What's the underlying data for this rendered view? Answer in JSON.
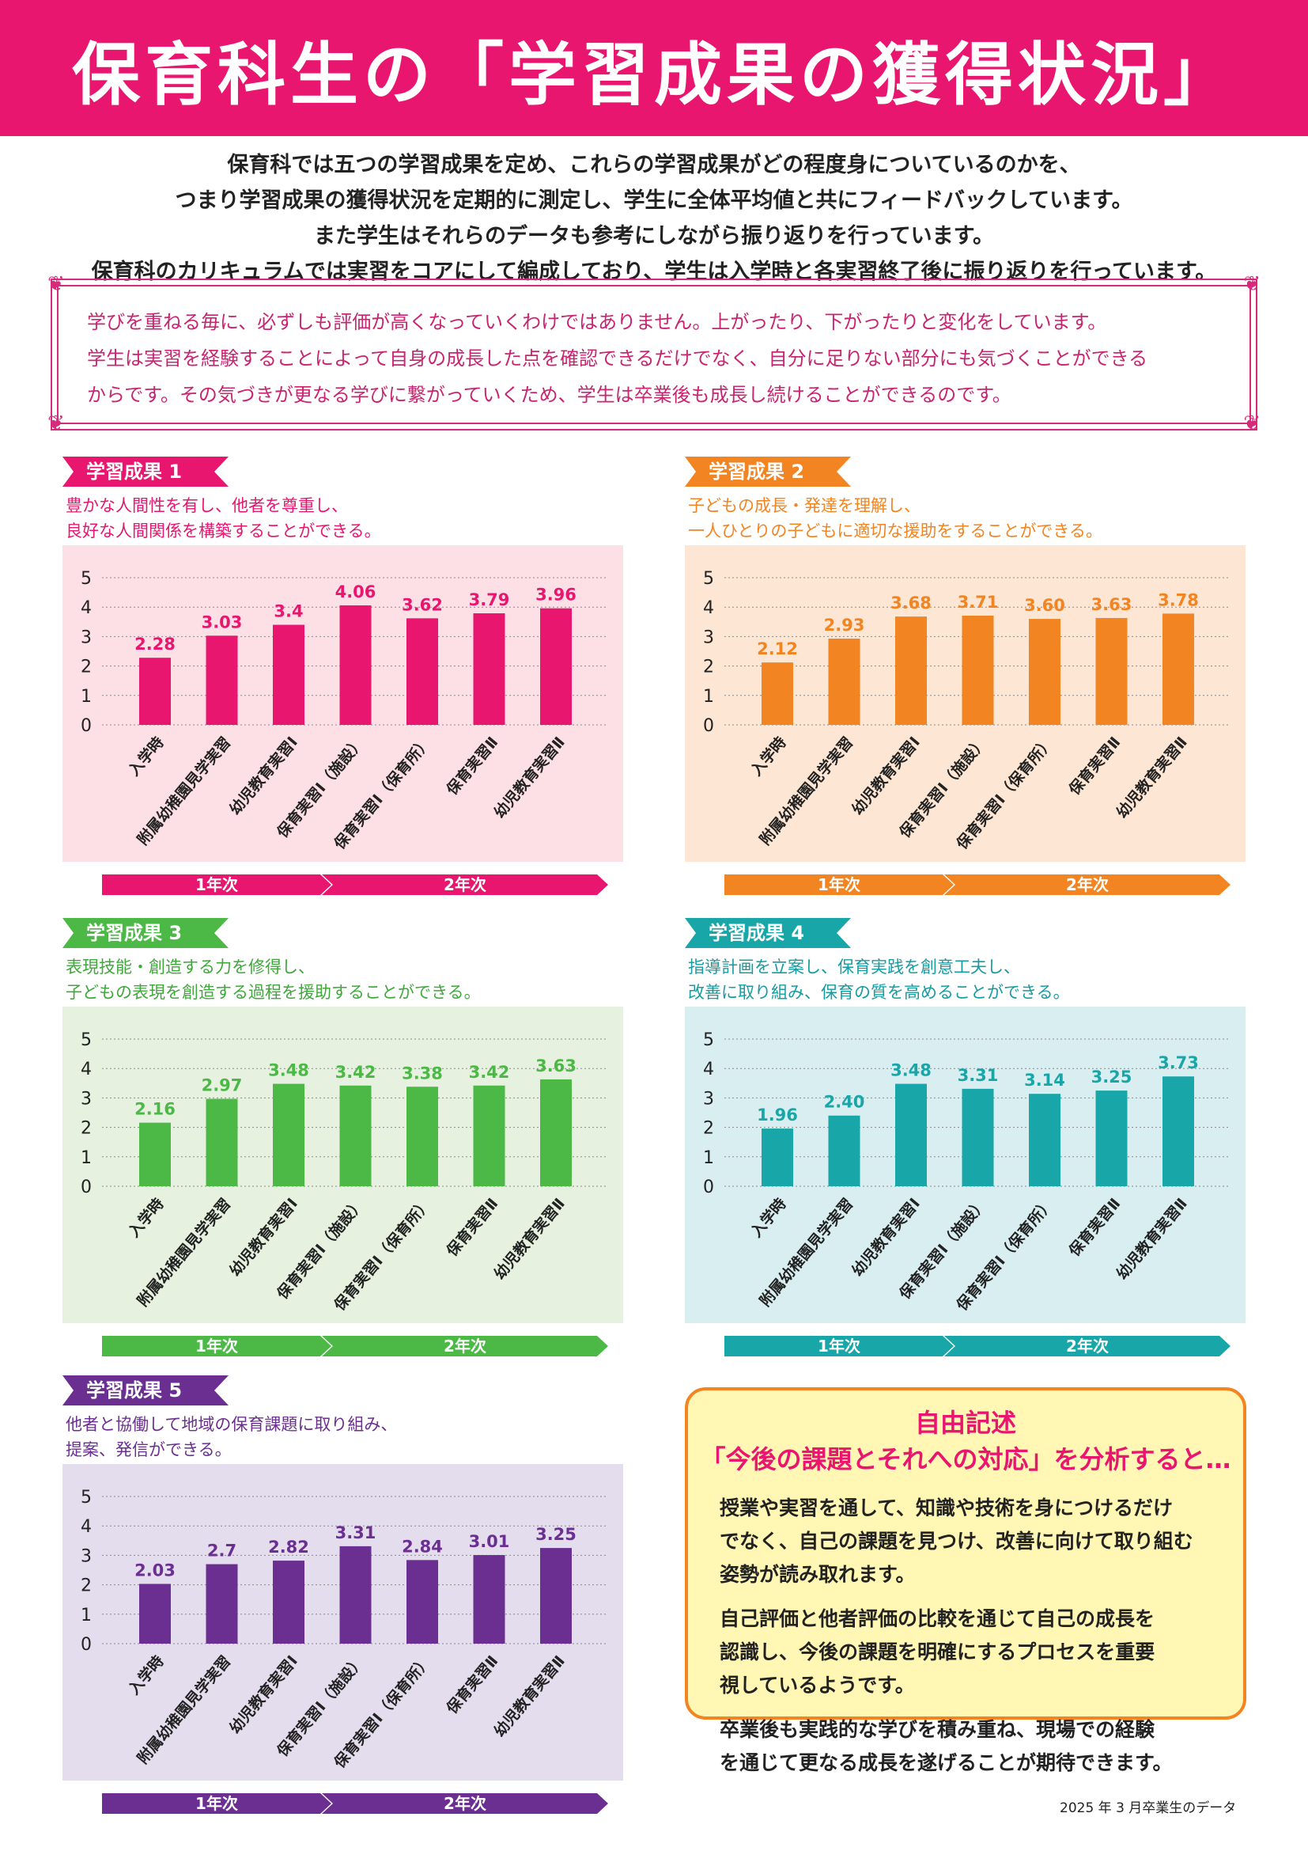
{
  "header": {
    "title": "保育科生の「学習成果の獲得状況」"
  },
  "intro": [
    "保育科では五つの学習成果を定め、これらの学習成果がどの程度身についているのかを、",
    "つまり学習成果の獲得状況を定期的に測定し、学生に全体平均値と共にフィードバックしています。",
    "また学生はそれらのデータも参考にしながら振り返りを行っています。",
    "保育科のカリキュラムでは実習をコアにして編成しており、学生は入学時と各実習終了後に振り返りを行っています。"
  ],
  "note": [
    "学びを重ねる毎に、必ずしも評価が高くなっていくわけではありません。上がったり、下がったりと変化をしています。",
    "学生は実習を経験することによって自身の成長した点を確認できるだけでなく、自分に足りない部分にも気づくことができる",
    "からです。その気づきが更なる学びに繋がっていくため、学生は卒業後も成長し続けることができるのです。"
  ],
  "phases": [
    "1年次",
    "2年次"
  ],
  "chart_data": [
    {
      "type": "bar",
      "tag": "学習成果 1",
      "description": [
        "豊かな人間性を有し、他者を尊重し、",
        "良好な人間関係を構築することができる。"
      ],
      "categories": [
        "入学時",
        "附属幼稚園見学実習",
        "幼児教育実習Ⅰ",
        "保育実習Ⅰ（施設）",
        "保育実習Ⅰ（保育所）",
        "保育実習Ⅱ",
        "幼児教育実習Ⅱ"
      ],
      "values": [
        2.28,
        3.03,
        3.4,
        4.06,
        3.62,
        3.79,
        3.96
      ],
      "labels": [
        "2.28",
        "3.03",
        "3.4",
        "4.06",
        "3.62",
        "3.79",
        "3.96"
      ],
      "ylim": [
        0,
        5
      ],
      "yticks": [
        "0",
        "1",
        "2",
        "3",
        "4",
        "5"
      ],
      "grid": true,
      "colors": {
        "bar": "#e8166f",
        "label": "#e8166f",
        "bg": "#fde0e6",
        "tag": "#e8166f",
        "desc": "#e8166f"
      }
    },
    {
      "type": "bar",
      "tag": "学習成果 2",
      "description": [
        "子どもの成長・発達を理解し、",
        "一人ひとりの子どもに適切な援助をすることができる。"
      ],
      "categories": [
        "入学時",
        "附属幼稚園見学実習",
        "幼児教育実習Ⅰ",
        "保育実習Ⅰ（施設）",
        "保育実習Ⅰ（保育所）",
        "保育実習Ⅱ",
        "幼児教育実習Ⅱ"
      ],
      "values": [
        2.12,
        2.93,
        3.68,
        3.71,
        3.6,
        3.63,
        3.78
      ],
      "labels": [
        "2.12",
        "2.93",
        "3.68",
        "3.71",
        "3.60",
        "3.63",
        "3.78"
      ],
      "ylim": [
        0,
        5
      ],
      "yticks": [
        "0",
        "1",
        "2",
        "3",
        "4",
        "5"
      ],
      "grid": true,
      "colors": {
        "bar": "#f28421",
        "label": "#f28421",
        "bg": "#fde6d3",
        "tag": "#f28421",
        "desc": "#f28421"
      }
    },
    {
      "type": "bar",
      "tag": "学習成果 3",
      "description": [
        "表現技能・創造する力を修得し、",
        "子どもの表現を創造する過程を援助することができる。"
      ],
      "categories": [
        "入学時",
        "附属幼稚園見学実習",
        "幼児教育実習Ⅰ",
        "保育実習Ⅰ（施設）",
        "保育実習Ⅰ（保育所）",
        "保育実習Ⅱ",
        "幼児教育実習Ⅱ"
      ],
      "values": [
        2.16,
        2.97,
        3.48,
        3.42,
        3.38,
        3.42,
        3.63
      ],
      "labels": [
        "2.16",
        "2.97",
        "3.48",
        "3.42",
        "3.38",
        "3.42",
        "3.63"
      ],
      "ylim": [
        0,
        5
      ],
      "yticks": [
        "0",
        "1",
        "2",
        "3",
        "4",
        "5"
      ],
      "grid": true,
      "colors": {
        "bar": "#4cb846",
        "label": "#4cb846",
        "bg": "#e6f2df",
        "tag": "#4cb846",
        "desc": "#3ea83a"
      }
    },
    {
      "type": "bar",
      "tag": "学習成果 4",
      "description": [
        "指導計画を立案し、保育実践を創意工夫し、",
        "改善に取り組み、保育の質を高めることができる。"
      ],
      "categories": [
        "入学時",
        "附属幼稚園見学実習",
        "幼児教育実習Ⅰ",
        "保育実習Ⅰ（施設）",
        "保育実習Ⅰ（保育所）",
        "保育実習Ⅱ",
        "幼児教育実習Ⅱ"
      ],
      "values": [
        1.96,
        2.4,
        3.48,
        3.31,
        3.14,
        3.25,
        3.73
      ],
      "labels": [
        "1.96",
        "2.40",
        "3.48",
        "3.31",
        "3.14",
        "3.25",
        "3.73"
      ],
      "ylim": [
        0,
        5
      ],
      "yticks": [
        "0",
        "1",
        "2",
        "3",
        "4",
        "5"
      ],
      "grid": true,
      "colors": {
        "bar": "#19a6a8",
        "label": "#19a6a8",
        "bg": "#d9eef0",
        "tag": "#19a6a8",
        "desc": "#149ca0"
      }
    },
    {
      "type": "bar",
      "tag": "学習成果 5",
      "description": [
        "他者と協働して地域の保育課題に取り組み、",
        "提案、発信ができる。"
      ],
      "categories": [
        "入学時",
        "附属幼稚園見学実習",
        "幼児教育実習Ⅰ",
        "保育実習Ⅰ（施設）",
        "保育実習Ⅰ（保育所）",
        "保育実習Ⅱ",
        "幼児教育実習Ⅱ"
      ],
      "values": [
        2.03,
        2.7,
        2.82,
        3.31,
        2.84,
        3.01,
        3.25
      ],
      "labels": [
        "2.03",
        "2.7",
        "2.82",
        "3.31",
        "2.84",
        "3.01",
        "3.25"
      ],
      "ylim": [
        0,
        5
      ],
      "yticks": [
        "0",
        "1",
        "2",
        "3",
        "4",
        "5"
      ],
      "grid": true,
      "colors": {
        "bar": "#6b2f91",
        "label": "#6b2f91",
        "bg": "#e3dded",
        "tag": "#6b2f91",
        "desc": "#6b2f91"
      }
    }
  ],
  "free": {
    "title1": "自由記述",
    "title2": "「今後の課題とそれへの対応」を分析すると…",
    "paragraphs": [
      [
        "授業や実習を通して、知識や技術を身につけるだけ",
        "でなく、自己の課題を見つけ、改善に向けて取り組む",
        "姿勢が読み取れます。"
      ],
      [
        "自己評価と他者評価の比較を通じて自己の成長を",
        "認識し、今後の課題を明確にするプロセスを重要",
        "視しているようです。"
      ],
      [
        "卒業後も実践的な学びを積み重ね、現場での経験",
        "を通じて更なる成長を遂げることが期待できます。"
      ]
    ]
  },
  "source": "2025 年 3 月卒業生のデータ"
}
